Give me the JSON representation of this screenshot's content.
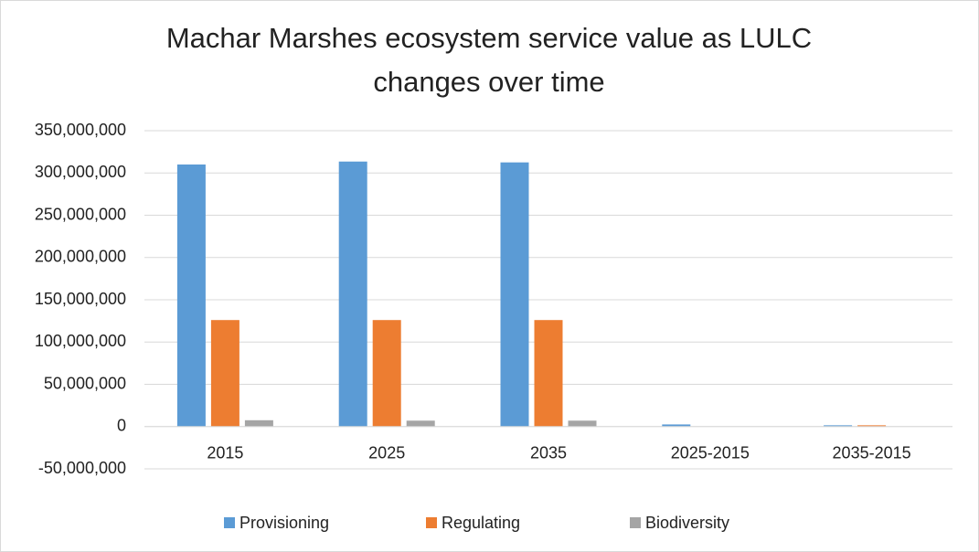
{
  "chart_data": {
    "type": "bar",
    "title": "Machar Marshes ecosystem service value as LULC changes over time",
    "categories": [
      "2015",
      "2025",
      "2035",
      "2025-2015",
      "2035-2015"
    ],
    "series": [
      {
        "name": "Provisioning",
        "color": "#5b9bd5",
        "values": [
          310000000,
          313500000,
          312500000,
          2500000,
          1500000
        ]
      },
      {
        "name": "Regulating",
        "color": "#ed7d31",
        "values": [
          126000000,
          126000000,
          126000000,
          0,
          1500000
        ]
      },
      {
        "name": "Biodiversity",
        "color": "#a5a5a5",
        "values": [
          7500000,
          7000000,
          7000000,
          0,
          0
        ]
      }
    ],
    "ylim": [
      -50000000,
      350000000
    ],
    "yticks": [
      {
        "value": -50000000,
        "label": "-50,000,000"
      },
      0,
      {
        "value": 50000000,
        "label": "50,000,000"
      },
      {
        "value": 100000000,
        "label": "100,000,000"
      },
      {
        "value": 150000000,
        "label": "150,000,000"
      },
      {
        "value": 200000000,
        "label": "200,000,000"
      },
      {
        "value": 250000000,
        "label": "250,000,000"
      },
      {
        "value": 300000000,
        "label": "300,000,000"
      },
      {
        "value": 350000000,
        "label": "350,000,000"
      }
    ],
    "grid": true,
    "legend": "bottom"
  }
}
